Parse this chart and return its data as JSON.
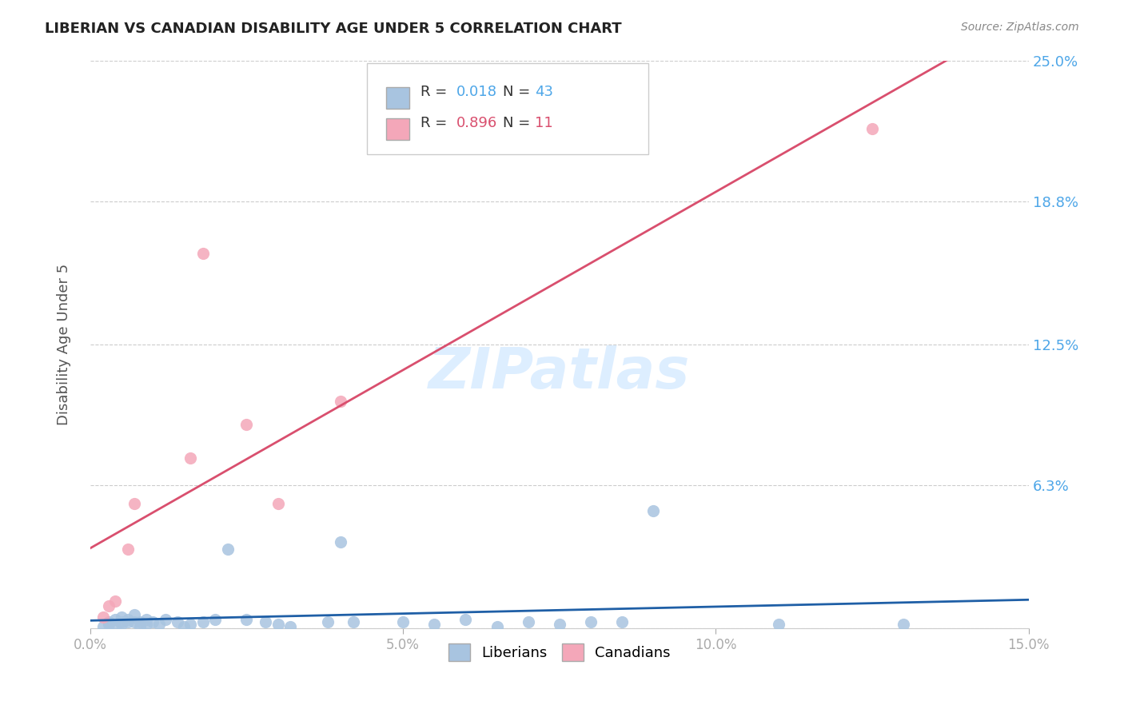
{
  "title": "LIBERIAN VS CANADIAN DISABILITY AGE UNDER 5 CORRELATION CHART",
  "source": "Source: ZipAtlas.com",
  "ylabel": "Disability Age Under 5",
  "xlabel": "",
  "xlim": [
    0.0,
    0.15
  ],
  "ylim": [
    0.0,
    0.25
  ],
  "ytick_positions": [
    0.0,
    0.063,
    0.125,
    0.188,
    0.25
  ],
  "ytick_labels": [
    "",
    "6.3%",
    "12.5%",
    "18.8%",
    "25.0%"
  ],
  "xticks": [
    0.0,
    0.05,
    0.1,
    0.15
  ],
  "xtick_labels": [
    "0.0%",
    "5.0%",
    "10.0%",
    "15.0%"
  ],
  "liberian_R": 0.018,
  "liberian_N": 43,
  "canadian_R": 0.896,
  "canadian_N": 11,
  "liberian_color": "#a8c4e0",
  "liberian_line_color": "#1f5fa6",
  "canadian_color": "#f4a7b9",
  "canadian_line_color": "#d94f6e",
  "background_color": "#ffffff",
  "grid_color": "#cccccc",
  "title_color": "#222222",
  "label_color": "#4da6e8",
  "watermark_color": "#ddeeff",
  "liberian_x": [
    0.002,
    0.003,
    0.003,
    0.004,
    0.004,
    0.005,
    0.005,
    0.005,
    0.006,
    0.006,
    0.007,
    0.007,
    0.008,
    0.008,
    0.009,
    0.009,
    0.01,
    0.011,
    0.012,
    0.014,
    0.015,
    0.016,
    0.018,
    0.02,
    0.022,
    0.025,
    0.028,
    0.03,
    0.032,
    0.038,
    0.04,
    0.042,
    0.05,
    0.055,
    0.06,
    0.065,
    0.07,
    0.075,
    0.08,
    0.085,
    0.09,
    0.11,
    0.13
  ],
  "liberian_y": [
    0.001,
    0.002,
    0.003,
    0.004,
    0.001,
    0.003,
    0.005,
    0.002,
    0.004,
    0.003,
    0.003,
    0.006,
    0.001,
    0.003,
    0.002,
    0.004,
    0.003,
    0.002,
    0.004,
    0.003,
    0.001,
    0.002,
    0.003,
    0.004,
    0.035,
    0.004,
    0.003,
    0.002,
    0.001,
    0.003,
    0.038,
    0.003,
    0.003,
    0.002,
    0.004,
    0.001,
    0.003,
    0.002,
    0.003,
    0.003,
    0.052,
    0.002,
    0.002
  ],
  "canadian_x": [
    0.002,
    0.003,
    0.004,
    0.006,
    0.007,
    0.016,
    0.018,
    0.025,
    0.03,
    0.04,
    0.125
  ],
  "canadian_y": [
    0.005,
    0.01,
    0.012,
    0.035,
    0.055,
    0.075,
    0.165,
    0.09,
    0.055,
    0.1,
    0.22
  ]
}
